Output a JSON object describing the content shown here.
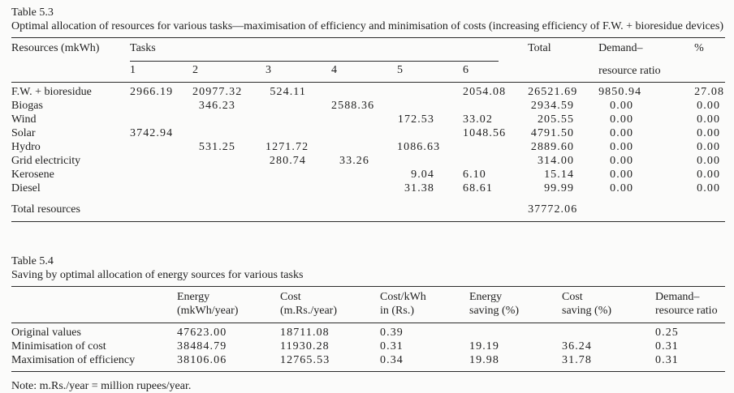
{
  "theme": {
    "paper_background": "#fbfbfa",
    "ink_color": "#1f1f1f"
  },
  "table_5_3": {
    "label": "Table 5.3",
    "caption": "Optimal allocation of resources for various tasks—maximisation of efficiency and minimisation of costs (increasing efficiency of F.W. + bioresidue devices)",
    "header": {
      "resources": "Resources (mkWh)",
      "tasks_group": "Tasks",
      "task_numbers": [
        "1",
        "2",
        "3",
        "4",
        "5",
        "6"
      ],
      "total": "Total",
      "demand_line1": "Demand–",
      "demand_line2": "resource ratio",
      "percent": "%"
    },
    "rows": [
      {
        "resource": "F.W. + bioresidue",
        "tasks": [
          "2966.19",
          "20977.32",
          "524.11",
          "",
          "",
          "2054.08"
        ],
        "total": "26521.69",
        "demand_resource_ratio": "9850.94",
        "percent": "27.08"
      },
      {
        "resource": "Biogas",
        "tasks": [
          "",
          "346.23",
          "",
          "2588.36",
          "",
          ""
        ],
        "total": "2934.59",
        "demand_resource_ratio": "0.00",
        "percent": "0.00"
      },
      {
        "resource": "Wind",
        "tasks": [
          "",
          "",
          "",
          "",
          "172.53",
          "33.02"
        ],
        "total": "205.55",
        "demand_resource_ratio": "0.00",
        "percent": "0.00"
      },
      {
        "resource": "Solar",
        "tasks": [
          "3742.94",
          "",
          "",
          "",
          "",
          "1048.56"
        ],
        "total": "4791.50",
        "demand_resource_ratio": "0.00",
        "percent": "0.00"
      },
      {
        "resource": "Hydro",
        "tasks": [
          "",
          "531.25",
          "1271.72",
          "",
          "1086.63",
          ""
        ],
        "total": "2889.60",
        "demand_resource_ratio": "0.00",
        "percent": "0.00"
      },
      {
        "resource": "Grid electricity",
        "tasks": [
          "",
          "",
          "280.74",
          "33.26",
          "",
          ""
        ],
        "total": "314.00",
        "demand_resource_ratio": "0.00",
        "percent": "0.00"
      },
      {
        "resource": "Kerosene",
        "tasks": [
          "",
          "",
          "",
          "",
          "9.04",
          "6.10"
        ],
        "total": "15.14",
        "demand_resource_ratio": "0.00",
        "percent": "0.00"
      },
      {
        "resource": "Diesel",
        "tasks": [
          "",
          "",
          "",
          "",
          "31.38",
          "68.61"
        ],
        "total": "99.99",
        "demand_resource_ratio": "0.00",
        "percent": "0.00"
      }
    ],
    "total_row": {
      "label": "Total resources",
      "total": "37772.06"
    }
  },
  "table_5_4": {
    "label": "Table 5.4",
    "caption": "Saving by optimal allocation of energy sources for various tasks",
    "header": {
      "energy_line1": "Energy",
      "energy_line2": "(mkWh/year)",
      "cost_line1": "Cost",
      "cost_line2": "(m.Rs./year)",
      "costkwh_line1": "Cost/kWh",
      "costkwh_line2": "in (Rs.)",
      "esave_line1": "Energy",
      "esave_line2": "saving (%)",
      "csave_line1": "Cost",
      "csave_line2": "saving (%)",
      "dr_line1": "Demand–",
      "dr_line2": "resource ratio"
    },
    "rows": [
      {
        "label": "Original values",
        "energy": "47623.00",
        "cost": "18711.08",
        "cost_kwh": "0.39",
        "energy_saving": "",
        "cost_saving": "",
        "demand_resource_ratio": "0.25"
      },
      {
        "label": "Minimisation of cost",
        "energy": "38484.79",
        "cost": "11930.28",
        "cost_kwh": "0.31",
        "energy_saving": "19.19",
        "cost_saving": "36.24",
        "demand_resource_ratio": "0.31"
      },
      {
        "label": "Maximisation of efficiency",
        "energy": "38106.06",
        "cost": "12765.53",
        "cost_kwh": "0.34",
        "energy_saving": "19.98",
        "cost_saving": "31.78",
        "demand_resource_ratio": "0.31"
      }
    ],
    "note": "Note: m.Rs./year = million rupees/year."
  }
}
